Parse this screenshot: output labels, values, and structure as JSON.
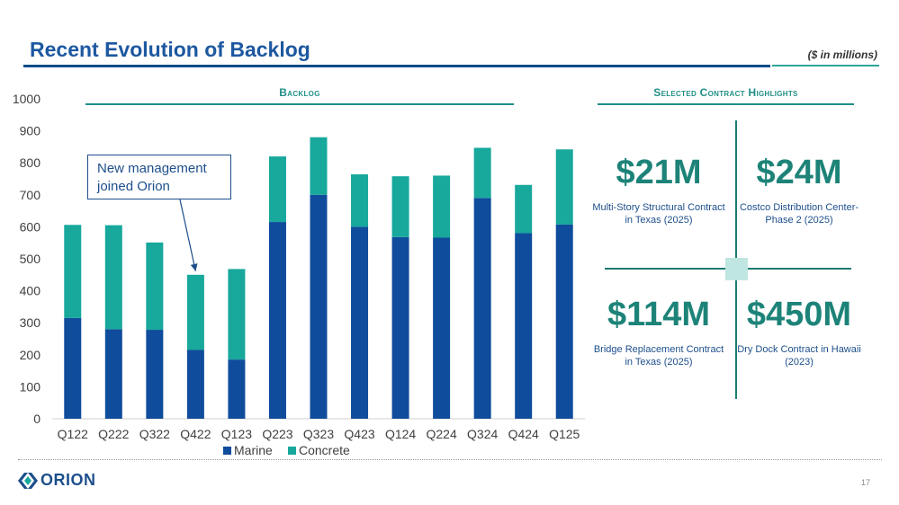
{
  "header": {
    "title": "Recent Evolution of Backlog",
    "units_note": "($ in millions)"
  },
  "backlog_section": {
    "heading": "Backlog"
  },
  "highlights_section": {
    "heading": "Selected Contract Highlights",
    "tiles": [
      {
        "amount": "$21M",
        "description": "Multi-Story Structural Contract in Texas (2025)"
      },
      {
        "amount": "$24M",
        "description": "Costco Distribution Center- Phase 2 (2025)"
      },
      {
        "amount": "$114M",
        "description": "Bridge Replacement Contract in Texas (2025)"
      },
      {
        "amount": "$450M",
        "description": "Dry Dock Contract in Hawaii (2023)"
      }
    ]
  },
  "annotation": {
    "text": "New management joined Orion",
    "target_category": "Q422"
  },
  "footer": {
    "logo_text": "ORION",
    "page_number": "17"
  },
  "colors": {
    "marine": "#0f4c9c",
    "concrete": "#18a89c",
    "accent": "#1d8378",
    "title": "#1d58a0"
  },
  "chart_data": {
    "type": "bar",
    "stacked": true,
    "title": "",
    "xlabel": "",
    "ylabel": "",
    "ylim": [
      0,
      1000
    ],
    "yticks": [
      0,
      100,
      200,
      300,
      400,
      500,
      600,
      700,
      800,
      900,
      1000
    ],
    "categories": [
      "Q122",
      "Q222",
      "Q322",
      "Q422",
      "Q123",
      "Q223",
      "Q323",
      "Q423",
      "Q124",
      "Q224",
      "Q324",
      "Q424",
      "Q125"
    ],
    "series": [
      {
        "name": "Marine",
        "color": "#0f4c9c",
        "values": [
          315,
          280,
          278,
          215,
          185,
          615,
          700,
          600,
          568,
          566,
          690,
          580,
          607
        ]
      },
      {
        "name": "Concrete",
        "color": "#18a89c",
        "values": [
          291,
          325,
          273,
          235,
          283,
          205,
          180,
          164,
          190,
          194,
          157,
          151,
          235
        ]
      }
    ],
    "legend": "bottom",
    "grid": false
  }
}
